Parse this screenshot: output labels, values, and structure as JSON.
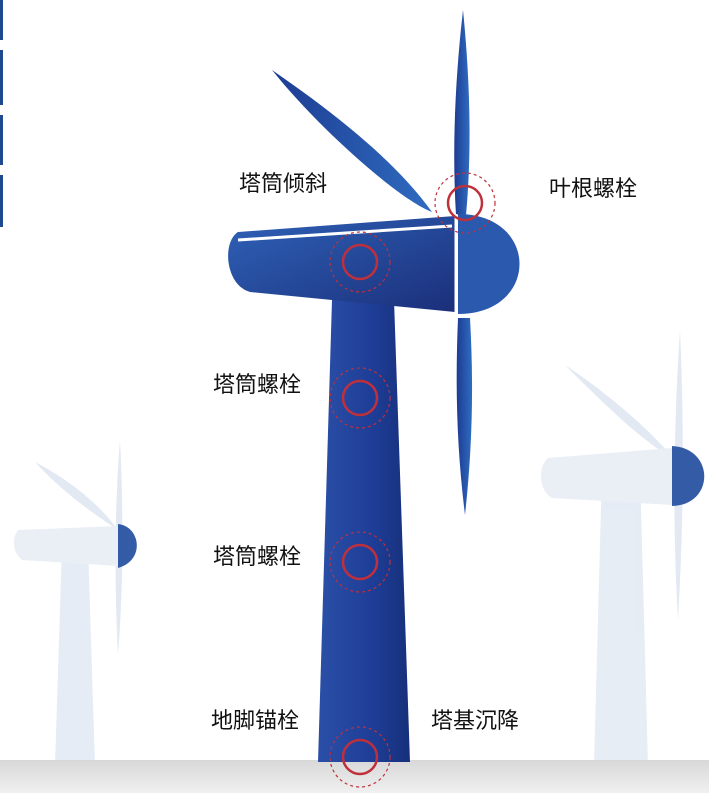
{
  "labels": [
    {
      "text": "塔筒倾斜"
    },
    {
      "text": "叶根螺栓"
    },
    {
      "text": "塔筒螺栓"
    },
    {
      "text": "塔筒螺栓"
    },
    {
      "text": "地脚锚栓"
    },
    {
      "text": "塔基沉降"
    }
  ]
}
